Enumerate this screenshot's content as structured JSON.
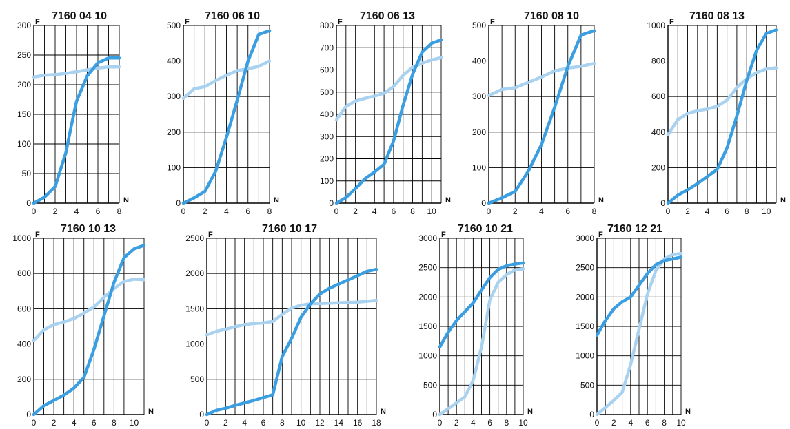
{
  "colors": {
    "dark": "#3a9ee0",
    "light": "#a9d2f0",
    "grid": "#000000"
  },
  "chart_data": [
    {
      "type": "line",
      "title": "7160 04 10",
      "xlabel": "N",
      "ylabel": "F",
      "xlim": [
        0,
        8
      ],
      "ylim": [
        0,
        300
      ],
      "xticks": [
        0,
        2,
        4,
        6,
        8
      ],
      "yticks": [
        0,
        50,
        100,
        150,
        200,
        250,
        300
      ],
      "series": [
        {
          "color": "dark",
          "x": [
            0,
            1,
            2,
            3,
            3.5,
            4,
            5,
            6,
            7,
            8
          ],
          "y": [
            0,
            10,
            28,
            85,
            130,
            172,
            215,
            237,
            245,
            245
          ]
        },
        {
          "color": "light",
          "x": [
            0,
            1,
            2,
            3,
            4,
            5,
            6,
            7,
            8
          ],
          "y": [
            213,
            216,
            217,
            219,
            222,
            225,
            228,
            230,
            230
          ]
        }
      ]
    },
    {
      "type": "line",
      "title": "7160 06 10",
      "xlabel": "N",
      "ylabel": "F",
      "xlim": [
        0,
        8
      ],
      "ylim": [
        0,
        500
      ],
      "xticks": [
        0,
        2,
        4,
        6,
        8
      ],
      "yticks": [
        0,
        100,
        200,
        300,
        400,
        500
      ],
      "series": [
        {
          "color": "dark",
          "x": [
            0,
            1,
            2,
            3,
            4,
            5,
            6,
            7,
            8
          ],
          "y": [
            0,
            15,
            33,
            90,
            185,
            290,
            400,
            475,
            485
          ]
        },
        {
          "color": "light",
          "x": [
            0,
            1,
            2,
            3,
            4,
            5,
            6,
            7,
            8
          ],
          "y": [
            295,
            322,
            328,
            345,
            360,
            373,
            378,
            385,
            400
          ]
        }
      ]
    },
    {
      "type": "line",
      "title": "7160 06 13",
      "xlabel": "N",
      "ylabel": "F",
      "xlim": [
        0,
        11
      ],
      "ylim": [
        0,
        800
      ],
      "xticks": [
        0,
        2,
        4,
        6,
        8,
        10
      ],
      "yticks": [
        0,
        100,
        200,
        300,
        400,
        500,
        600,
        700,
        800
      ],
      "series": [
        {
          "color": "dark",
          "x": [
            0,
            1,
            2,
            3,
            4,
            5,
            6,
            7,
            8,
            9,
            10,
            11
          ],
          "y": [
            0,
            25,
            65,
            110,
            140,
            175,
            280,
            440,
            580,
            680,
            720,
            735
          ]
        },
        {
          "color": "light",
          "x": [
            0,
            1,
            2,
            3,
            4,
            5,
            6,
            7,
            8,
            9,
            10,
            11
          ],
          "y": [
            375,
            435,
            460,
            472,
            482,
            495,
            525,
            575,
            612,
            630,
            645,
            655
          ]
        }
      ]
    },
    {
      "type": "line",
      "title": "7160 08 10",
      "xlabel": "N",
      "ylabel": "F",
      "xlim": [
        0,
        8
      ],
      "ylim": [
        0,
        500
      ],
      "xticks": [
        0,
        2,
        4,
        6,
        8
      ],
      "yticks": [
        0,
        100,
        200,
        300,
        400,
        500
      ],
      "series": [
        {
          "color": "dark",
          "x": [
            0,
            1,
            2,
            3,
            4,
            5,
            6,
            7,
            8
          ],
          "y": [
            0,
            15,
            33,
            90,
            165,
            270,
            385,
            473,
            485
          ]
        },
        {
          "color": "light",
          "x": [
            0,
            1,
            2,
            3,
            4,
            5,
            6,
            7,
            8
          ],
          "y": [
            303,
            320,
            325,
            340,
            355,
            372,
            380,
            385,
            393
          ]
        }
      ]
    },
    {
      "type": "line",
      "title": "7160 08 13",
      "xlabel": "N",
      "ylabel": "F",
      "xlim": [
        0,
        11
      ],
      "ylim": [
        0,
        1000
      ],
      "xticks": [
        0,
        2,
        4,
        6,
        8,
        10
      ],
      "yticks": [
        0,
        200,
        400,
        600,
        800,
        1000
      ],
      "series": [
        {
          "color": "dark",
          "x": [
            0,
            1,
            2,
            3,
            4,
            5,
            6,
            7,
            8,
            9,
            10,
            11
          ],
          "y": [
            0,
            45,
            75,
            110,
            150,
            190,
            310,
            490,
            690,
            860,
            955,
            975
          ]
        },
        {
          "color": "light",
          "x": [
            0,
            1,
            2,
            3,
            4,
            5,
            6,
            7,
            8,
            9,
            10,
            11
          ],
          "y": [
            385,
            470,
            505,
            520,
            530,
            545,
            580,
            650,
            700,
            735,
            755,
            762
          ]
        }
      ]
    },
    {
      "type": "line",
      "title": "7160 10 13",
      "xlabel": "N",
      "ylabel": "F",
      "xlim": [
        0,
        11
      ],
      "ylim": [
        0,
        1000
      ],
      "xticks": [
        0,
        2,
        4,
        6,
        8,
        10
      ],
      "yticks": [
        0,
        200,
        400,
        600,
        800,
        1000
      ],
      "series": [
        {
          "color": "dark",
          "x": [
            0,
            1,
            2,
            3,
            4,
            5,
            6,
            7,
            8,
            9,
            10,
            11
          ],
          "y": [
            0,
            50,
            80,
            110,
            150,
            210,
            370,
            560,
            750,
            890,
            940,
            960
          ]
        },
        {
          "color": "light",
          "x": [
            0,
            1,
            2,
            3,
            4,
            5,
            6,
            7,
            8,
            9,
            10,
            11
          ],
          "y": [
            420,
            480,
            510,
            525,
            545,
            575,
            610,
            665,
            715,
            755,
            768,
            765
          ]
        }
      ]
    },
    {
      "type": "line",
      "title": "7160 10 17",
      "xlabel": "N",
      "ylabel": "F",
      "xlim": [
        0,
        18
      ],
      "ylim": [
        0,
        2500
      ],
      "xticks": [
        0,
        2,
        4,
        6,
        8,
        10,
        12,
        14,
        16,
        18
      ],
      "yticks": [
        0,
        500,
        1000,
        1500,
        2000,
        2500
      ],
      "series": [
        {
          "color": "dark",
          "x": [
            0,
            1,
            2,
            3,
            4,
            5,
            6,
            7,
            8,
            9,
            10,
            11,
            12,
            13,
            14,
            15,
            16,
            17,
            18
          ],
          "y": [
            0,
            60,
            90,
            130,
            165,
            200,
            240,
            280,
            820,
            1080,
            1380,
            1570,
            1710,
            1790,
            1850,
            1910,
            1970,
            2030,
            2060
          ]
        },
        {
          "color": "light",
          "x": [
            0,
            1,
            2,
            3,
            4,
            5,
            6,
            7,
            8,
            9,
            10,
            11,
            12,
            13,
            14,
            15,
            16,
            17,
            18
          ],
          "y": [
            1130,
            1180,
            1210,
            1245,
            1275,
            1290,
            1300,
            1320,
            1420,
            1510,
            1550,
            1570,
            1575,
            1580,
            1585,
            1590,
            1595,
            1605,
            1620
          ]
        }
      ]
    },
    {
      "type": "line",
      "title": "7160 10 21",
      "xlabel": "N",
      "ylabel": "F",
      "xlim": [
        0,
        10
      ],
      "ylim": [
        0,
        3000
      ],
      "xticks": [
        0,
        2,
        4,
        6,
        8,
        10
      ],
      "yticks": [
        0,
        500,
        1000,
        1500,
        2000,
        2500,
        3000
      ],
      "series": [
        {
          "color": "dark",
          "x": [
            0,
            1,
            2,
            3,
            4,
            5,
            6,
            7,
            8,
            9,
            10
          ],
          "y": [
            1150,
            1400,
            1600,
            1750,
            1900,
            2120,
            2330,
            2470,
            2530,
            2560,
            2580
          ]
        },
        {
          "color": "light",
          "x": [
            0,
            1,
            2,
            3,
            4,
            5,
            6,
            7,
            8,
            9,
            10
          ],
          "y": [
            0,
            100,
            200,
            300,
            580,
            1150,
            1950,
            2250,
            2380,
            2460,
            2480
          ]
        }
      ]
    },
    {
      "type": "line",
      "title": "7160 12 21",
      "xlabel": "N",
      "ylabel": "F",
      "xlim": [
        0,
        10
      ],
      "ylim": [
        0,
        3000
      ],
      "xticks": [
        0,
        2,
        4,
        6,
        8,
        10
      ],
      "yticks": [
        0,
        500,
        1000,
        1500,
        2000,
        2500,
        3000
      ],
      "series": [
        {
          "color": "dark",
          "x": [
            0,
            1,
            2,
            3,
            4,
            5,
            6,
            7,
            8,
            9,
            10
          ],
          "y": [
            1350,
            1600,
            1800,
            1920,
            2000,
            2200,
            2400,
            2550,
            2620,
            2650,
            2680
          ]
        },
        {
          "color": "light",
          "x": [
            0,
            1,
            2,
            3,
            4,
            5,
            6,
            7,
            8,
            9,
            10
          ],
          "y": [
            0,
            120,
            240,
            380,
            850,
            1450,
            2050,
            2450,
            2650,
            2720,
            2740
          ]
        }
      ]
    }
  ]
}
